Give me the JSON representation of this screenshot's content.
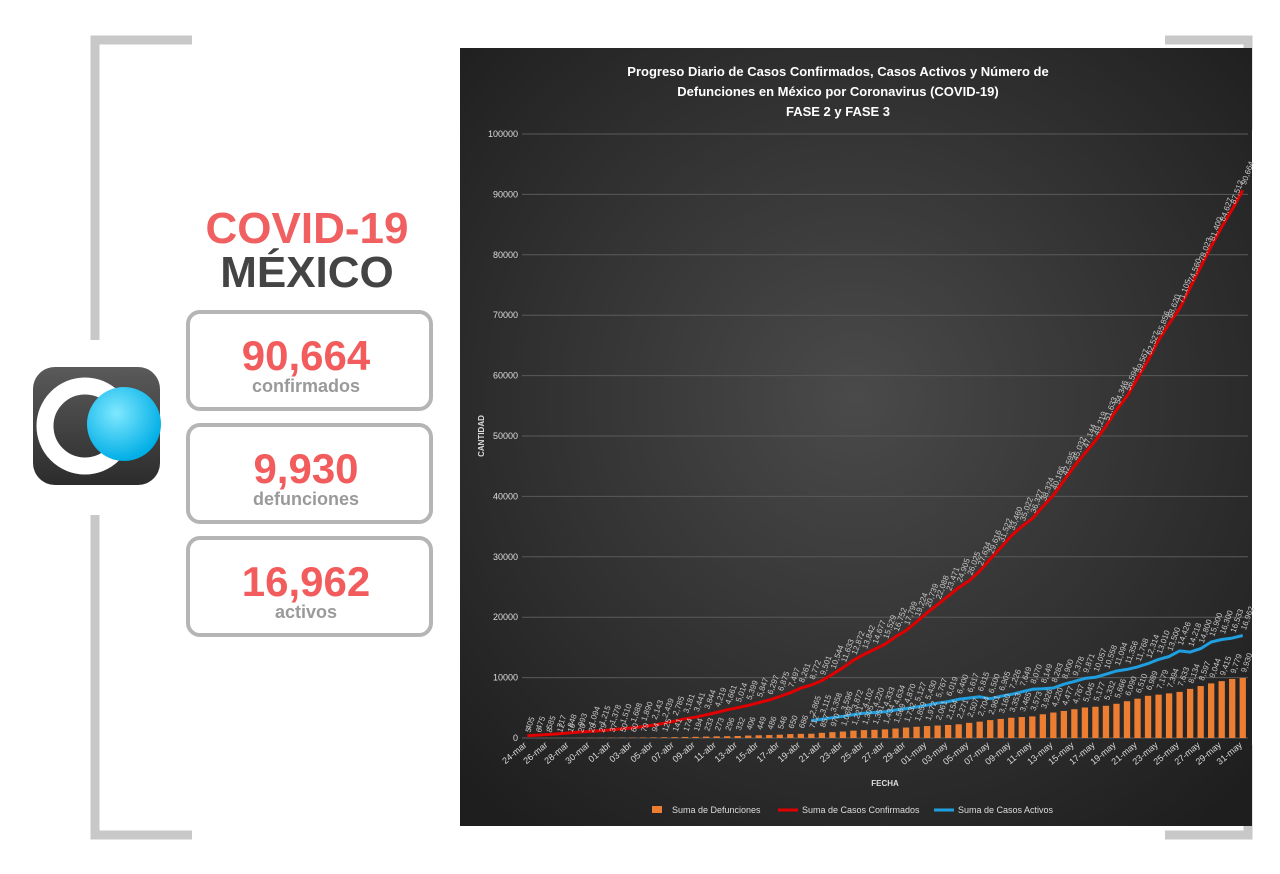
{
  "panel": {
    "title": "COVID-19",
    "subtitle": "MÉXICO",
    "stats": [
      {
        "value": "90,664",
        "label": "confirmados"
      },
      {
        "value": "9,930",
        "label": "defunciones"
      },
      {
        "value": "16,962",
        "label": "activos"
      }
    ]
  },
  "chart_data": {
    "type": "combo",
    "title": [
      "Progreso Diario de Casos Confirmados, Casos Activos y Número de",
      "Defunciones en México por Coronavirus (COVID-19)",
      "FASE 2 y FASE 3"
    ],
    "x_label": "FECHA",
    "y_label": "CANTIDAD",
    "categories": [
      "24-mar",
      null,
      "26-mar",
      null,
      "28-mar",
      null,
      "30-mar",
      null,
      "01-abr",
      null,
      "03-abr",
      null,
      "05-abr",
      null,
      "07-abr",
      null,
      "09-abr",
      null,
      "11-abr",
      null,
      "13-abr",
      null,
      "15-abr",
      null,
      "17-abr",
      null,
      "19-abr",
      null,
      "21-abr",
      null,
      "23-abr",
      null,
      "25-abr",
      null,
      "27-abr",
      null,
      "29-abr",
      null,
      "01-may",
      null,
      "03-may",
      null,
      "05-may",
      null,
      "07-may",
      null,
      "09-may",
      null,
      "11-may",
      null,
      "13-may",
      null,
      "15-may",
      null,
      "17-may",
      null,
      "19-may",
      null,
      "21-may",
      null,
      "23-may",
      null,
      "25-may",
      null,
      "27-may",
      null,
      "29-may",
      null,
      "31-may"
    ],
    "ylim": [
      0,
      100000
    ],
    "yticks": [
      0,
      10000,
      20000,
      30000,
      40000,
      50000,
      60000,
      70000,
      80000,
      90000,
      100000
    ],
    "grid": true,
    "legend": "bottom",
    "series": [
      {
        "name": "Suma de Defunciones",
        "type": "bar",
        "color": "#ed7d31",
        "values": [
          5,
          6,
          8,
          12,
          16,
          20,
          28,
          29,
          37,
          50,
          60,
          79,
          94,
          125,
          141,
          174,
          194,
          233,
          273,
          296,
          332,
          406,
          449,
          486,
          546,
          650,
          686,
          712,
          857,
          970,
          1069,
          1221,
          1305,
          1351,
          1434,
          1569,
          1732,
          1859,
          1972,
          2061,
          2154,
          2271,
          2507,
          2704,
          2961,
          3160,
          3353,
          3465,
          3573,
          3926,
          4220,
          4477,
          4767,
          5045,
          5177,
          5332,
          5666,
          6090,
          6510,
          6989,
          7179,
          7394,
          7633,
          8134,
          8597,
          9044,
          9415,
          9779,
          9930
        ],
        "value_labels": [
          "5",
          "6",
          "8",
          "12",
          "16",
          "20",
          "28",
          "29",
          "37",
          "50",
          "60",
          "79",
          "94",
          "125",
          "141",
          "174",
          "194",
          "233",
          "273",
          "296",
          "332",
          "406",
          "449",
          "486",
          "546",
          "650",
          "686",
          "712",
          "857",
          "970",
          "1,069",
          "1,221",
          "1,305",
          "1,351",
          "1,434",
          "1,569",
          "1,732",
          "1,859",
          "1,972",
          "2,061",
          "2,154",
          "2,271",
          "2,507",
          "2,704",
          "2,961",
          "3,160",
          "3,353",
          "3,465",
          "3,573",
          "3,926",
          "4,220",
          "4,477",
          "4,767",
          "5,045",
          "5,177",
          "5,332",
          "5,666",
          "6,090",
          "6,510",
          "6,989",
          "7,179",
          "7,394",
          "7,633",
          "8,134",
          "8,597",
          "9,044",
          "9,415",
          "9,779",
          "9,930"
        ]
      },
      {
        "name": "Suma de Casos Confirmados",
        "type": "line",
        "color": "#e00000",
        "values": [
          405,
          475,
          585,
          717,
          848,
          993,
          1094,
          1215,
          1378,
          1510,
          1688,
          1890,
          2143,
          2439,
          2785,
          3181,
          3441,
          3844,
          4219,
          4661,
          5014,
          5399,
          5847,
          6297,
          6875,
          7497,
          8261,
          8772,
          9501,
          10544,
          11633,
          12872,
          13842,
          14677,
          15529,
          16752,
          17799,
          19224,
          20739,
          22088,
          23471,
          24905,
          26025,
          27634,
          29616,
          31522,
          33460,
          35022,
          36327,
          38324,
          40186,
          42595,
          45032,
          47144,
          49219,
          51633,
          54346,
          56594,
          59567,
          62527,
          65856,
          68620,
          71105,
          74560,
          78023,
          81400,
          84627,
          87512,
          90664
        ],
        "value_labels": [
          "405",
          "475",
          "585",
          "717",
          "848",
          "993",
          "1,094",
          "1,215",
          "1,378",
          "1,510",
          "1,688",
          "1,890",
          "2,143",
          "2,439",
          "2,785",
          "3,181",
          "3,441",
          "3,844",
          "4,219",
          "4,661",
          "5,014",
          "5,399",
          "5,847",
          "6,297",
          "6,875",
          "7,497",
          "8,261",
          "8,772",
          "9,501",
          "10,544",
          "11,633",
          "12,872",
          "13,842",
          "14,677",
          "15,529",
          "16,752",
          "17,799",
          "19,224",
          "20,739",
          "22,088",
          "23,471",
          "24,905",
          "26,025",
          "27,634",
          "29,616",
          "31,522",
          "33,460",
          "35,022",
          "36,327",
          "38,324",
          "40,186",
          "42,595",
          "45,032",
          "47,144",
          "49,219",
          "51,633",
          "54,346",
          "56,594",
          "59,567",
          "62,527",
          "65,856",
          "68,620",
          "71,105",
          "74,560",
          "78,023",
          "81,400",
          "84,627",
          "87,512",
          "90,664"
        ]
      },
      {
        "name": "Suma de Casos Activos",
        "type": "line",
        "color": "#1f9fe0",
        "values": [
          null,
          null,
          null,
          null,
          null,
          null,
          null,
          null,
          null,
          null,
          null,
          null,
          null,
          null,
          null,
          null,
          null,
          null,
          null,
          null,
          null,
          null,
          null,
          null,
          null,
          null,
          null,
          2865,
          3115,
          3358,
          3596,
          3872,
          4102,
          4220,
          4333,
          4634,
          4870,
          5127,
          5430,
          5767,
          6019,
          6400,
          6617,
          6815,
          6500,
          6905,
          7226,
          7649,
          8070,
          8149,
          8283,
          8900,
          9378,
          9871,
          10057,
          10558,
          11094,
          11356,
          11768,
          12314,
          13010,
          13500,
          14426,
          14218,
          14800,
          15900,
          16300,
          16533,
          16962
        ],
        "value_labels": [
          null,
          null,
          null,
          null,
          null,
          null,
          null,
          null,
          null,
          null,
          null,
          null,
          null,
          null,
          null,
          null,
          null,
          null,
          null,
          null,
          null,
          null,
          null,
          null,
          null,
          null,
          null,
          "2,865",
          "3,115",
          "3,358",
          "3,596",
          "3,872",
          "4,102",
          "4,220",
          "4,333",
          "4,634",
          "4,870",
          "5,127",
          "5,430",
          "5,767",
          "6,019",
          "6,400",
          "6,617",
          "6,815",
          "6,500",
          "6,905",
          "7,226",
          "7,649",
          "8,070",
          "8,149",
          "8,283",
          "8,900",
          "9,378",
          "9,871",
          "10,057",
          "10,558",
          "11,094",
          "11,356",
          "11,768",
          "12,314",
          "13,010",
          "13,500",
          "14,426",
          "14,218",
          "14,800",
          "15,900",
          "16,300",
          "16,533",
          "16,962"
        ]
      }
    ]
  }
}
